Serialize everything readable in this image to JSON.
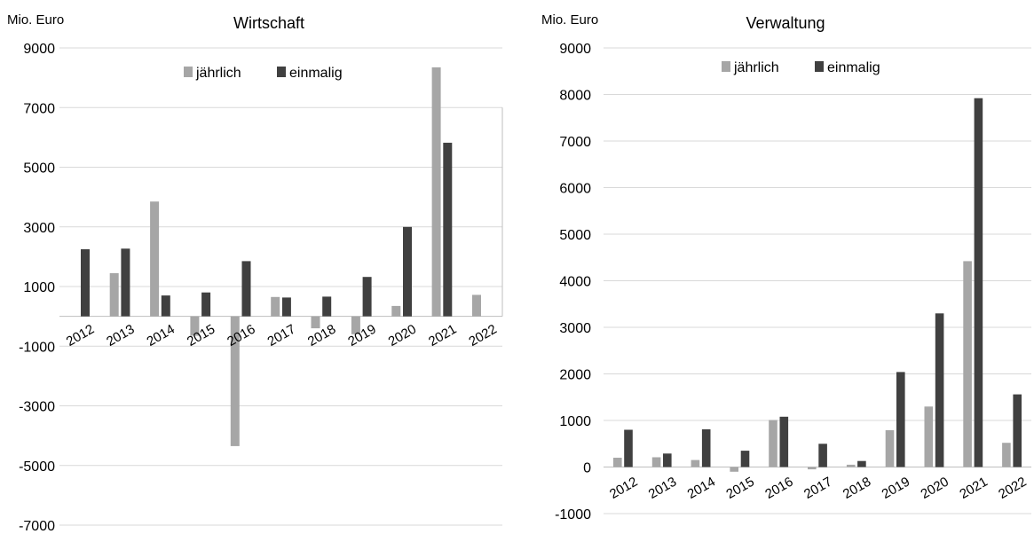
{
  "chart_data": [
    {
      "type": "bar",
      "title": "Wirtschaft",
      "unit_label": "Mio. Euro",
      "xlabel": "",
      "ylabel": "Mio. Euro",
      "ylim": [
        -7000,
        9000
      ],
      "yticks": [
        "-7000",
        "-5000",
        "-3000",
        "-1000",
        "1000",
        "3000",
        "5000",
        "7000",
        "9000"
      ],
      "categories": [
        "2012",
        "2013",
        "2014",
        "2015",
        "2016",
        "2017",
        "2018",
        "2019",
        "2020",
        "2021",
        "2022"
      ],
      "legend": [
        "jährlich",
        "einmalig"
      ],
      "legend_position": "top",
      "grid": true,
      "series": [
        {
          "name": "jährlich",
          "color": "#a6a6a6",
          "values": [
            0,
            1450,
            3850,
            -650,
            -4350,
            650,
            -400,
            -600,
            350,
            8350,
            720
          ]
        },
        {
          "name": "einmalig",
          "color": "#404040",
          "values": [
            2250,
            2270,
            700,
            800,
            1850,
            630,
            660,
            1320,
            3000,
            5820,
            0
          ]
        }
      ]
    },
    {
      "type": "bar",
      "title": "Verwaltung",
      "unit_label": "Mio. Euro",
      "xlabel": "",
      "ylabel": "Mio. Euro",
      "ylim": [
        -1000,
        9000
      ],
      "yticks": [
        "-1000",
        "0",
        "1000",
        "2000",
        "3000",
        "4000",
        "5000",
        "6000",
        "7000",
        "8000",
        "9000"
      ],
      "categories": [
        "2012",
        "2013",
        "2014",
        "2015",
        "2016",
        "2017",
        "2018",
        "2019",
        "2020",
        "2021",
        "2022"
      ],
      "legend": [
        "jährlich",
        "einmalig"
      ],
      "legend_position": "top",
      "grid": true,
      "series": [
        {
          "name": "jährlich",
          "color": "#a6a6a6",
          "values": [
            200,
            210,
            150,
            -100,
            1010,
            -50,
            50,
            790,
            1300,
            4420,
            520
          ]
        },
        {
          "name": "einmalig",
          "color": "#404040",
          "values": [
            800,
            290,
            810,
            350,
            1080,
            500,
            130,
            2040,
            3300,
            7920,
            1560
          ]
        }
      ]
    }
  ]
}
